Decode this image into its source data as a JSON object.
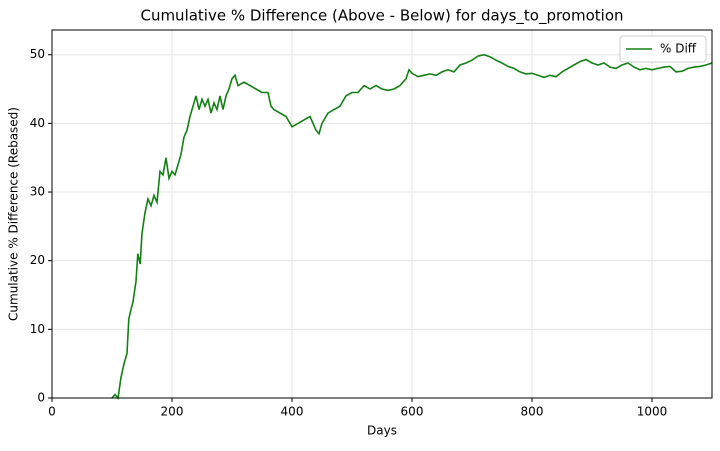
{
  "chart_data": {
    "type": "line",
    "title": "Cumulative % Difference (Above - Below) for days_to_promotion",
    "x_label": "Days",
    "y_label": "Cumulative % Difference (Rebased)",
    "x": [
      100,
      105,
      110,
      115,
      120,
      125,
      128,
      132,
      135,
      140,
      143,
      147,
      150,
      155,
      160,
      165,
      170,
      175,
      180,
      185,
      190,
      195,
      200,
      205,
      210,
      215,
      220,
      225,
      230,
      235,
      240,
      245,
      250,
      255,
      260,
      265,
      270,
      275,
      280,
      285,
      290,
      295,
      300,
      305,
      310,
      320,
      330,
      340,
      350,
      360,
      365,
      370,
      380,
      390,
      400,
      410,
      420,
      430,
      440,
      445,
      450,
      460,
      470,
      480,
      490,
      500,
      510,
      520,
      530,
      540,
      550,
      560,
      570,
      580,
      590,
      595,
      600,
      610,
      620,
      630,
      640,
      650,
      660,
      670,
      680,
      690,
      700,
      710,
      720,
      730,
      740,
      750,
      760,
      770,
      780,
      790,
      800,
      810,
      820,
      830,
      840,
      850,
      860,
      870,
      880,
      890,
      900,
      910,
      920,
      930,
      940,
      950,
      960,
      970,
      980,
      990,
      1000,
      1010,
      1020,
      1030,
      1040,
      1050,
      1060,
      1070,
      1080,
      1090,
      1100
    ],
    "series": [
      {
        "name": "% Diff",
        "color": "#138013",
        "values": [
          0,
          0.5,
          0,
          3,
          5,
          6.5,
          11.5,
          13,
          14,
          17,
          21,
          19.5,
          24,
          27,
          29,
          28,
          29.5,
          28.5,
          33,
          32.5,
          35,
          32,
          33,
          32.5,
          34,
          35.5,
          38,
          39,
          41,
          42.5,
          44,
          42,
          43.5,
          42.5,
          43.5,
          41.5,
          43,
          42,
          44,
          42,
          44,
          45,
          46.5,
          47,
          45.5,
          46,
          45.5,
          45,
          44.5,
          44.5,
          42.5,
          42,
          41.5,
          41,
          39.5,
          40,
          40.5,
          41,
          39,
          38.5,
          40,
          41.5,
          42,
          42.5,
          44,
          44.5,
          44.5,
          45.5,
          45,
          45.5,
          45,
          44.8,
          45,
          45.5,
          46.5,
          47.8,
          47.3,
          46.8,
          47,
          47.2,
          47,
          47.5,
          47.8,
          47.5,
          48.5,
          48.8,
          49.2,
          49.8,
          50,
          49.7,
          49.2,
          48.8,
          48.3,
          48,
          47.5,
          47.2,
          47.3,
          47,
          46.7,
          47,
          46.8,
          47.5,
          48,
          48.5,
          49,
          49.3,
          48.8,
          48.5,
          48.8,
          48.2,
          48,
          48.5,
          48.8,
          48.2,
          47.8,
          48,
          47.8,
          48,
          48.2,
          48.3,
          47.5,
          47.6,
          48,
          48.2,
          48.3,
          48.5,
          48.8
        ]
      }
    ],
    "xlim": [
      0,
      1100
    ],
    "ylim": [
      0,
      53.6
    ],
    "xticks": [
      0,
      200,
      400,
      600,
      800,
      1000
    ],
    "yticks": [
      0,
      10,
      20,
      30,
      40,
      50
    ],
    "hline": 0,
    "grid": true,
    "legend": "upper right"
  }
}
